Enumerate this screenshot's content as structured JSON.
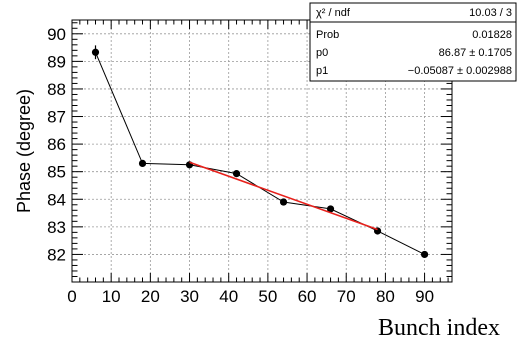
{
  "chart_data": {
    "type": "scatter",
    "title": "",
    "xlabel": "Bunch index",
    "ylabel": "Phase (degree)",
    "xlim": [
      0,
      97
    ],
    "ylim": [
      81,
      90.5
    ],
    "xticks": [
      "0",
      "10",
      "20",
      "30",
      "40",
      "50",
      "60",
      "70",
      "80",
      "90"
    ],
    "yticks": [
      "82",
      "83",
      "84",
      "85",
      "86",
      "87",
      "88",
      "89",
      "90"
    ],
    "grid": true,
    "series": [
      {
        "x": [
          6,
          18,
          30,
          42,
          54,
          66,
          78,
          90
        ],
        "y": [
          89.33,
          85.3,
          85.25,
          84.93,
          83.9,
          83.65,
          82.85,
          82.0
        ],
        "yerr": [
          0.25,
          0.05,
          0.05,
          0.05,
          0.05,
          0.05,
          0.05,
          0.03
        ],
        "color": "#000000",
        "connected": true
      }
    ],
    "fit": {
      "color": "#e8211c",
      "p0": 86.87,
      "p1": -0.05087,
      "x_range": [
        30,
        78
      ]
    },
    "stats_box": {
      "rows": [
        {
          "label": "χ² / ndf",
          "value": "10.03 / 3"
        },
        {
          "label": "Prob",
          "value": "0.01828"
        },
        {
          "label": "p0",
          "value": "86.87 ± 0.1705"
        },
        {
          "label": "p1",
          "value": "−0.05087 ± 0.002988"
        }
      ]
    }
  }
}
